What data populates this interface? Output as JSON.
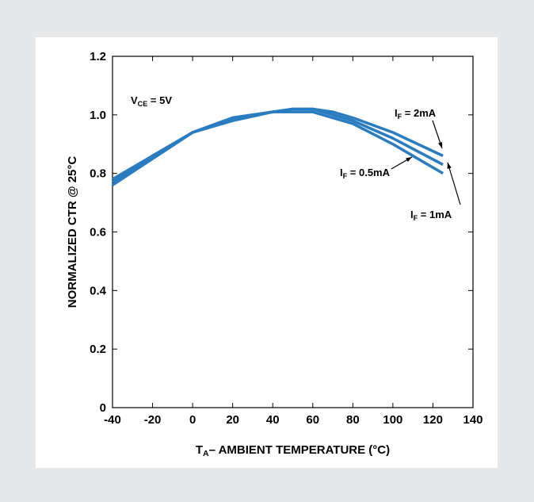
{
  "chart_data": {
    "type": "line",
    "ylabel": "NORMALIZED CTR @ 25°C",
    "xlabel": {
      "text": "T",
      "sub": "A",
      "after": "– AMBIENT TEMPERATURE (°C)"
    },
    "x": [
      -40,
      -20,
      0,
      20,
      40,
      50,
      60,
      70,
      80,
      100,
      125
    ],
    "series": [
      {
        "color": "#2a7cc0",
        "values": [
          0.78,
          0.86,
          0.94,
          0.99,
          1.01,
          1.02,
          1.02,
          1.01,
          0.99,
          0.94,
          0.86
        ]
      },
      {
        "color": "#2a7cc0",
        "values": [
          0.77,
          0.86,
          0.94,
          0.99,
          1.01,
          1.02,
          1.02,
          1.0,
          0.98,
          0.92,
          0.83
        ]
      },
      {
        "color": "#2a7cc0",
        "values": [
          0.76,
          0.85,
          0.94,
          0.98,
          1.01,
          1.01,
          1.01,
          0.99,
          0.97,
          0.9,
          0.8
        ]
      }
    ],
    "annotations": [
      {
        "text": "V",
        "sub": "CE",
        "after": " = 5V"
      },
      {
        "text": "I",
        "sub": "F",
        "after": " = 2mA"
      },
      {
        "text": "I",
        "sub": "F",
        "after": " = 0.5mA"
      },
      {
        "text": "I",
        "sub": "F",
        "after": " = 1mA"
      }
    ],
    "xlim": [
      -40,
      140
    ],
    "xticks": [
      -40,
      -20,
      0,
      20,
      40,
      60,
      80,
      100,
      120,
      140
    ],
    "ylim": [
      0,
      1.2
    ],
    "yticks": [
      0,
      0.2,
      0.4,
      0.6,
      0.8,
      {
        "value": 1,
        "label": "1.0"
      },
      1.2
    ],
    "grid": false
  }
}
